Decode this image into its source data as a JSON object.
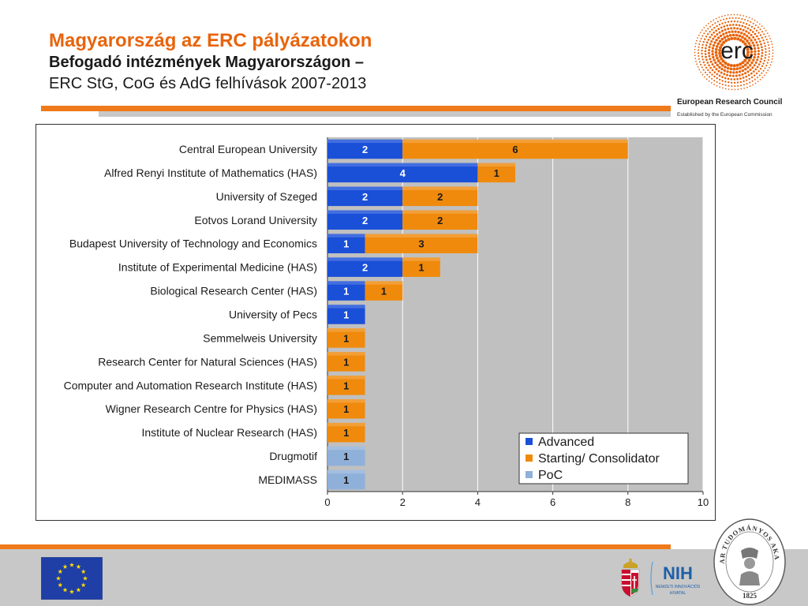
{
  "slide": {
    "title": "Magyarország az ERC pályázatokon",
    "subtitle_bold": "Befogadó intézmények Magyarországon –",
    "subtitle": "ERC StG, CoG és AdG felhívások 2007-2013"
  },
  "logos": {
    "erc_mark": "erc",
    "erc_name": "European Research Council",
    "erc_tagline": "Established by the European Commission",
    "nih_mark": "NIH",
    "nih_text_1": "NEMZETI INNOVÁCIÓS",
    "nih_text_2": "HIVATAL",
    "mta_seal_text": "MAGYAR TUDOMÁNYOS AKADÉMIA",
    "mta_year": "1825"
  },
  "colors": {
    "advanced": "#1a4fd8",
    "starting": "#f08a0c",
    "poc": "#8fb0d8",
    "plot_bg": "#c0c0c0",
    "accent": "#e8640c"
  },
  "chart_data": {
    "type": "bar",
    "orientation": "horizontal",
    "stacked": true,
    "categories": [
      "Central European University",
      "Alfred Renyi Institute of Mathematics (HAS)",
      "University of Szeged",
      "Eotvos Lorand University",
      "Budapest University of Technology and Economics",
      "Institute of Experimental Medicine (HAS)",
      "Biological Research Center (HAS)",
      "University of Pecs",
      "Semmelweis University",
      "Research Center for Natural Sciences (HAS)",
      "Computer and Automation Research Institute (HAS)",
      "Wigner Research Centre for Physics (HAS)",
      "Institute of Nuclear Research (HAS)",
      "Drugmotif",
      "MEDIMASS"
    ],
    "series": [
      {
        "name": "Advanced",
        "values": [
          2,
          4,
          2,
          2,
          1,
          2,
          1,
          1,
          0,
          0,
          0,
          0,
          0,
          0,
          0
        ]
      },
      {
        "name": "Starting/ Consolidator",
        "values": [
          6,
          1,
          2,
          2,
          3,
          1,
          1,
          0,
          1,
          1,
          1,
          1,
          1,
          0,
          0
        ]
      },
      {
        "name": "PoC",
        "values": [
          0,
          0,
          0,
          0,
          0,
          0,
          0,
          0,
          0,
          0,
          0,
          0,
          0,
          1,
          1
        ]
      }
    ],
    "xlim": [
      0,
      10
    ],
    "xticks": [
      0,
      2,
      4,
      6,
      8,
      10
    ],
    "grid": "vertical",
    "legend_position": "bottom-right",
    "data_labels": true
  }
}
